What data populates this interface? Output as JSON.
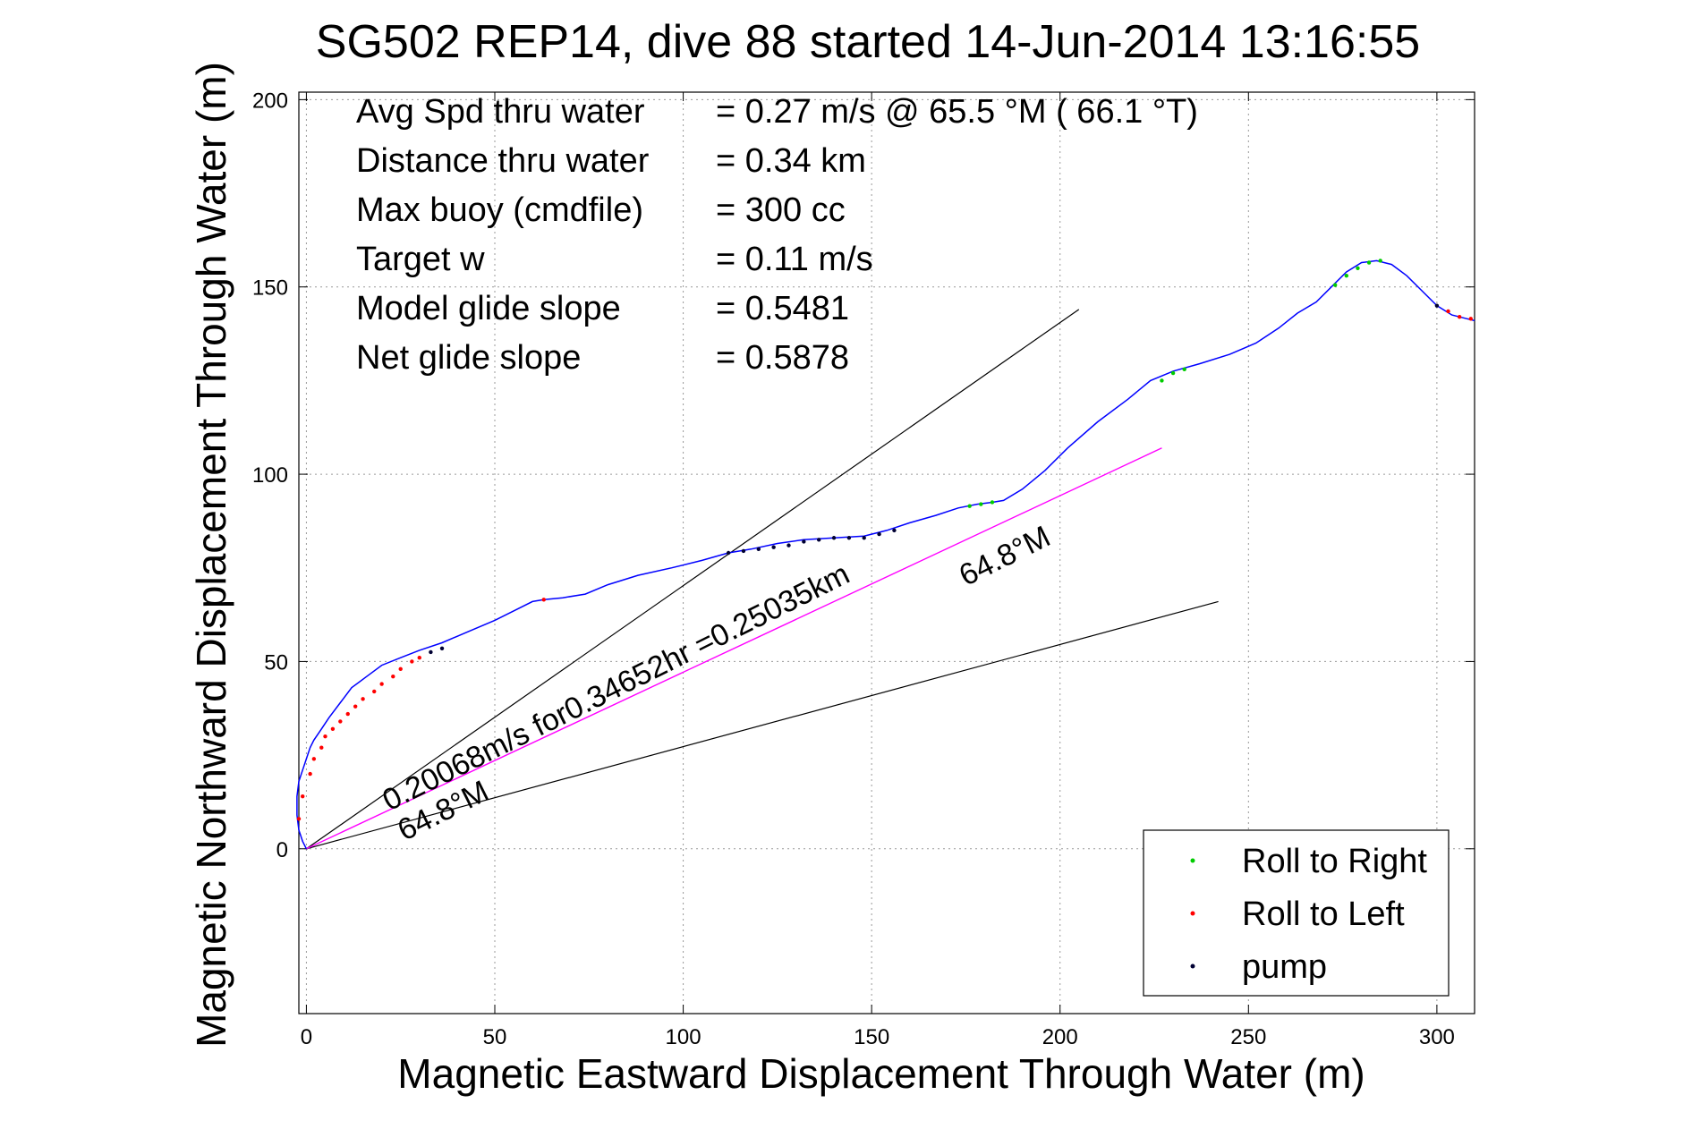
{
  "chart_data": {
    "type": "line",
    "title": "SG502 REP14, dive 88 started 14-Jun-2014 13:16:55",
    "xlabel": "Magnetic Eastward Displacement Through Water (m)",
    "ylabel": "Magnetic Northward Displacement Through Water (m)",
    "xlim": [
      -2,
      310
    ],
    "ylim": [
      -44,
      202
    ],
    "xticks": [
      0,
      50,
      100,
      150,
      200,
      250,
      300
    ],
    "yticks": [
      0,
      50,
      100,
      150,
      200
    ],
    "xtick_labels": [
      "0",
      "50",
      "100",
      "150",
      "200",
      "250",
      "300"
    ],
    "ytick_labels": [
      "0",
      "50",
      "100",
      "150",
      "200"
    ],
    "grid": true,
    "colors": {
      "track": "#0000ff",
      "net_line": "#ff00ff",
      "reference_lines": "#000000",
      "roll_right": "#00cc00",
      "roll_left": "#ff0000",
      "pump": "#000033"
    },
    "stats": [
      {
        "label": "Avg Spd thru water",
        "value": "=  0.27 m/s @  65.5 °M ( 66.1 °T)"
      },
      {
        "label": "Distance thru water",
        "value": "=  0.34 km"
      },
      {
        "label": "Max buoy (cmdfile)",
        "value": "= 300 cc"
      },
      {
        "label": "Target w",
        "value": "= 0.11 m/s"
      },
      {
        "label": "Model glide slope",
        "value": "= 0.5481"
      },
      {
        "label": "Net glide slope",
        "value": "= 0.5878"
      }
    ],
    "annotations": [
      {
        "text": "0.20068m/s for0.34652hr =0.25035km",
        "x": 22,
        "y": 10,
        "angle": 26.5
      },
      {
        "text": "64.8°M",
        "x": 26,
        "y": 2,
        "angle": 26.5
      },
      {
        "text": "64.8°M",
        "x": 175,
        "y": 70,
        "angle": 26.5
      }
    ],
    "reference_lines": [
      {
        "x": [
          0,
          205
        ],
        "y": [
          0,
          144
        ]
      },
      {
        "x": [
          0,
          242
        ],
        "y": [
          0,
          66
        ]
      }
    ],
    "net_line": {
      "x": [
        0,
        227
      ],
      "y": [
        0,
        107
      ]
    },
    "series": [
      {
        "name": "track",
        "x": [
          0,
          -1,
          -2,
          -2.5,
          -2.5,
          -2,
          -1,
          0,
          1,
          2,
          4,
          6,
          9,
          12,
          16,
          20,
          25,
          30,
          36,
          43,
          50,
          56,
          60,
          63,
          68,
          74,
          80,
          88,
          97,
          105,
          112,
          118,
          125,
          132,
          140,
          148,
          154,
          160,
          167,
          173,
          178,
          182,
          185,
          190,
          196,
          202,
          210,
          218,
          224,
          230,
          237,
          245,
          252,
          258,
          263,
          268,
          272,
          276,
          280,
          284,
          288,
          292,
          296,
          300,
          304,
          308,
          310
        ],
        "y": [
          0,
          2,
          5,
          9,
          14,
          18,
          21,
          24,
          27,
          29,
          32,
          35,
          39,
          43,
          46,
          49,
          51,
          53,
          55,
          58,
          61,
          64,
          66,
          66.5,
          67,
          68,
          70.5,
          73,
          75,
          77,
          79,
          80,
          81.5,
          82.5,
          83,
          83.5,
          85,
          87,
          89,
          91,
          92,
          92.5,
          93,
          96,
          101,
          107,
          114,
          120,
          125,
          127.5,
          129.5,
          132,
          135,
          139,
          143,
          146,
          150,
          154,
          156.5,
          157,
          156,
          153,
          149,
          145,
          142.5,
          141.5,
          141
        ]
      }
    ],
    "markers": [
      {
        "name": "Roll to Right",
        "color": "#00cc00",
        "points": [
          [
            176,
            91.5
          ],
          [
            179,
            92
          ],
          [
            182,
            92.5
          ],
          [
            227,
            125
          ],
          [
            230,
            127
          ],
          [
            233,
            128
          ],
          [
            273,
            150.5
          ],
          [
            276,
            153
          ],
          [
            279,
            155
          ],
          [
            282,
            156.5
          ],
          [
            285,
            157
          ]
        ]
      },
      {
        "name": "Roll to Left",
        "color": "#ff0000",
        "points": [
          [
            -2,
            8
          ],
          [
            -1,
            14
          ],
          [
            1,
            20
          ],
          [
            2,
            24
          ],
          [
            4,
            27
          ],
          [
            5,
            30
          ],
          [
            7,
            32
          ],
          [
            9,
            34
          ],
          [
            11,
            36
          ],
          [
            13,
            38
          ],
          [
            15,
            40
          ],
          [
            18,
            42
          ],
          [
            20,
            44
          ],
          [
            23,
            46
          ],
          [
            25,
            48
          ],
          [
            28,
            50
          ],
          [
            30,
            51
          ],
          [
            63,
            66.5
          ],
          [
            303,
            143.5
          ],
          [
            306,
            142
          ],
          [
            309,
            141.5
          ]
        ]
      },
      {
        "name": "pump",
        "color": "#000033",
        "points": [
          [
            33,
            52.5
          ],
          [
            36,
            53.5
          ],
          [
            112,
            79
          ],
          [
            116,
            79.5
          ],
          [
            120,
            80
          ],
          [
            124,
            80.5
          ],
          [
            128,
            81
          ],
          [
            132,
            82
          ],
          [
            136,
            82.5
          ],
          [
            140,
            83
          ],
          [
            144,
            83
          ],
          [
            148,
            83
          ],
          [
            152,
            84
          ],
          [
            156,
            85
          ],
          [
            300,
            145
          ]
        ]
      }
    ],
    "legend": {
      "position": "bottom-right",
      "entries": [
        {
          "label": "Roll to Right",
          "color": "#00cc00"
        },
        {
          "label": "Roll to Left",
          "color": "#ff0000"
        },
        {
          "label": "pump",
          "color": "#000033"
        }
      ]
    }
  }
}
